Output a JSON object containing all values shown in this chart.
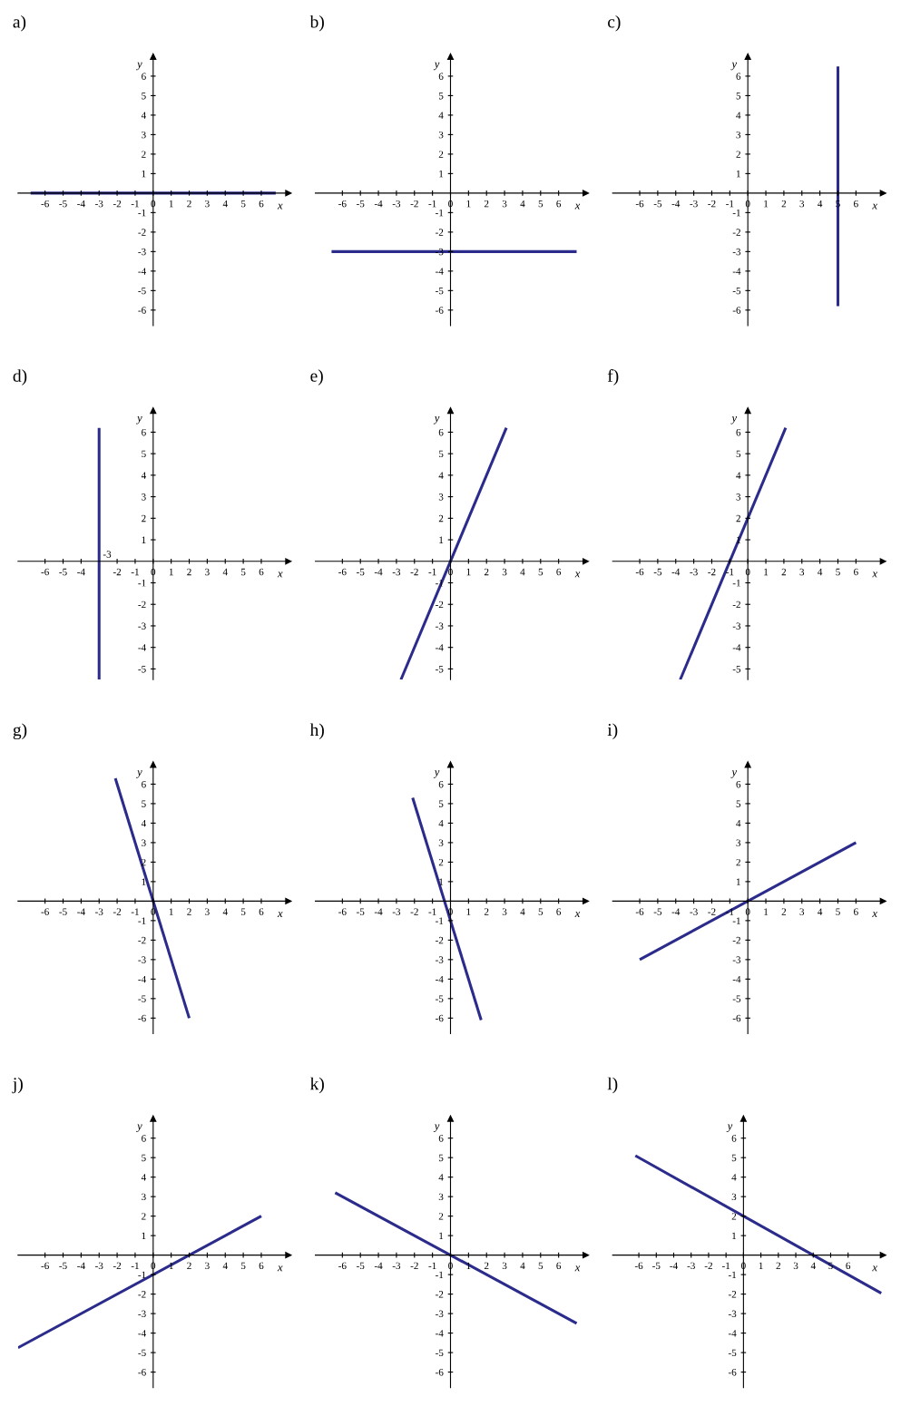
{
  "chart_data": [
    {
      "type": "line",
      "title": "a)",
      "xlabel": "x",
      "ylabel": "y",
      "x": [
        -6.8,
        6.8
      ],
      "values": [
        0,
        0
      ],
      "color": "#2b2b8c",
      "xlim": [
        -7.5,
        7.5
      ],
      "ylim": [
        -6.8,
        7
      ],
      "xticks": [
        -6,
        -5,
        -4,
        -3,
        -2,
        -1,
        0,
        1,
        2,
        3,
        4,
        5,
        6
      ],
      "yticks": [
        -6,
        -5,
        -4,
        -3,
        -2,
        -1,
        1,
        2,
        3,
        4,
        5,
        6
      ]
    },
    {
      "type": "line",
      "title": "b)",
      "xlabel": "x",
      "ylabel": "y",
      "x": [
        -6.6,
        7
      ],
      "values": [
        -3,
        -3
      ],
      "color": "#2b2b8c",
      "xlim": [
        -7.5,
        7.5
      ],
      "ylim": [
        -6.8,
        7
      ],
      "xticks": [
        -6,
        -5,
        -4,
        -3,
        -2,
        -1,
        0,
        1,
        2,
        3,
        4,
        5,
        6
      ],
      "yticks": [
        -6,
        -5,
        -4,
        -3,
        -2,
        -1,
        1,
        2,
        3,
        4,
        5,
        6
      ]
    },
    {
      "type": "line",
      "title": "c)",
      "xlabel": "x",
      "ylabel": "y",
      "x": [
        5,
        5
      ],
      "values": [
        -5.8,
        6.5
      ],
      "color": "#2b2b8c",
      "xlim": [
        -7.5,
        7.5
      ],
      "ylim": [
        -6.8,
        7
      ],
      "xticks": [
        -6,
        -5,
        -4,
        -3,
        -2,
        -1,
        0,
        1,
        2,
        3,
        4,
        5,
        6
      ],
      "yticks": [
        -6,
        -5,
        -4,
        -3,
        -2,
        -1,
        1,
        2,
        3,
        4,
        5,
        6
      ]
    },
    {
      "type": "line",
      "title": "d)",
      "xlabel": "x",
      "ylabel": "y",
      "x": [
        -3,
        -3
      ],
      "values": [
        -5.5,
        6.2
      ],
      "color": "#2b2b8c",
      "xlim": [
        -7.5,
        7.5
      ],
      "ylim": [
        -5.5,
        7
      ],
      "xticks": [
        -6,
        -5,
        -4,
        -2,
        -1,
        0,
        1,
        2,
        3,
        4,
        5,
        6
      ],
      "yticks": [
        -5,
        -4,
        -3,
        -2,
        -1,
        1,
        2,
        3,
        4,
        5,
        6
      ],
      "annotations": [
        {
          "text": "-3",
          "x": -3,
          "y": 0
        }
      ]
    },
    {
      "type": "line",
      "title": "e)",
      "xlabel": "x",
      "ylabel": "y",
      "x": [
        -2.75,
        3.1
      ],
      "values": [
        -5.5,
        6.2
      ],
      "color": "#2b2b8c",
      "xlim": [
        -7.5,
        7.5
      ],
      "ylim": [
        -5.5,
        7
      ],
      "xticks": [
        -6,
        -5,
        -4,
        -3,
        -2,
        -1,
        0,
        1,
        2,
        3,
        4,
        5,
        6
      ],
      "yticks": [
        -5,
        -4,
        -3,
        -2,
        -1,
        1,
        2,
        3,
        4,
        5,
        6
      ]
    },
    {
      "type": "line",
      "title": "f)",
      "xlabel": "x",
      "ylabel": "y",
      "x": [
        -3.75,
        2.1
      ],
      "values": [
        -5.5,
        6.2
      ],
      "color": "#2b2b8c",
      "xlim": [
        -7.5,
        7.5
      ],
      "ylim": [
        -5.5,
        7
      ],
      "xticks": [
        -6,
        -5,
        -4,
        -3,
        -2,
        -1,
        0,
        1,
        2,
        3,
        4,
        5,
        6
      ],
      "yticks": [
        -5,
        -4,
        -3,
        -2,
        -1,
        1,
        2,
        3,
        4,
        5,
        6
      ]
    },
    {
      "type": "line",
      "title": "g)",
      "xlabel": "x",
      "ylabel": "y",
      "x": [
        -2.1,
        2
      ],
      "values": [
        6.3,
        -6
      ],
      "color": "#2b2b8c",
      "xlim": [
        -7.5,
        7.5
      ],
      "ylim": [
        -6.8,
        7
      ],
      "xticks": [
        -6,
        -5,
        -4,
        -3,
        -2,
        -1,
        0,
        1,
        2,
        3,
        4,
        5,
        6
      ],
      "yticks": [
        -6,
        -5,
        -4,
        -3,
        -2,
        -1,
        1,
        2,
        3,
        4,
        5,
        6
      ]
    },
    {
      "type": "line",
      "title": "h)",
      "xlabel": "x",
      "ylabel": "y",
      "x": [
        -2.1,
        1.7
      ],
      "values": [
        5.3,
        -6.1
      ],
      "color": "#2b2b8c",
      "xlim": [
        -7.5,
        7.5
      ],
      "ylim": [
        -6.8,
        7
      ],
      "xticks": [
        -6,
        -5,
        -4,
        -3,
        -2,
        -1,
        0,
        1,
        2,
        3,
        4,
        5,
        6
      ],
      "yticks": [
        -6,
        -5,
        -4,
        -3,
        -2,
        -1,
        1,
        2,
        3,
        4,
        5,
        6
      ]
    },
    {
      "type": "line",
      "title": "i)",
      "xlabel": "x",
      "ylabel": "y",
      "x": [
        -6,
        6
      ],
      "values": [
        -3,
        3
      ],
      "color": "#2b2b8c",
      "xlim": [
        -7.5,
        7.5
      ],
      "ylim": [
        -6.8,
        7
      ],
      "xticks": [
        -6,
        -5,
        -4,
        -3,
        -2,
        -1,
        0,
        1,
        2,
        3,
        4,
        5,
        6
      ],
      "yticks": [
        -6,
        -5,
        -4,
        -3,
        -2,
        -1,
        1,
        2,
        3,
        4,
        5,
        6
      ]
    },
    {
      "type": "line",
      "title": "j)",
      "xlabel": "x",
      "ylabel": "y",
      "x": [
        -7.5,
        6
      ],
      "values": [
        -4.75,
        2
      ],
      "color": "#2b2b8c",
      "xlim": [
        -7.5,
        7.5
      ],
      "ylim": [
        -6.8,
        7
      ],
      "xticks": [
        -6,
        -5,
        -4,
        -3,
        -2,
        -1,
        0,
        1,
        2,
        3,
        4,
        5,
        6
      ],
      "yticks": [
        -6,
        -5,
        -4,
        -3,
        -2,
        -1,
        1,
        2,
        3,
        4,
        5,
        6
      ]
    },
    {
      "type": "line",
      "title": "k)",
      "xlabel": "x",
      "ylabel": "y",
      "x": [
        -6.4,
        7
      ],
      "values": [
        3.2,
        -3.5
      ],
      "color": "#2b2b8c",
      "xlim": [
        -7.5,
        7.5
      ],
      "ylim": [
        -6.8,
        7
      ],
      "xticks": [
        -6,
        -5,
        -4,
        -3,
        -2,
        -1,
        0,
        1,
        2,
        3,
        4,
        5,
        6
      ],
      "yticks": [
        -6,
        -5,
        -4,
        -3,
        -2,
        -1,
        1,
        2,
        3,
        4,
        5,
        6
      ]
    },
    {
      "type": "line",
      "title": "l)",
      "xlabel": "x",
      "ylabel": "y",
      "x": [
        -6.2,
        7.9
      ],
      "values": [
        5.1,
        -1.95
      ],
      "color": "#2b2b8c",
      "xlim": [
        -7.5,
        8
      ],
      "ylim": [
        -6.8,
        7
      ],
      "xticks": [
        -6,
        -5,
        -4,
        -3,
        -2,
        -1,
        0,
        1,
        2,
        3,
        4,
        5,
        6
      ],
      "yticks": [
        -6,
        -5,
        -4,
        -3,
        -2,
        -1,
        1,
        2,
        3,
        4,
        5,
        6
      ]
    }
  ]
}
